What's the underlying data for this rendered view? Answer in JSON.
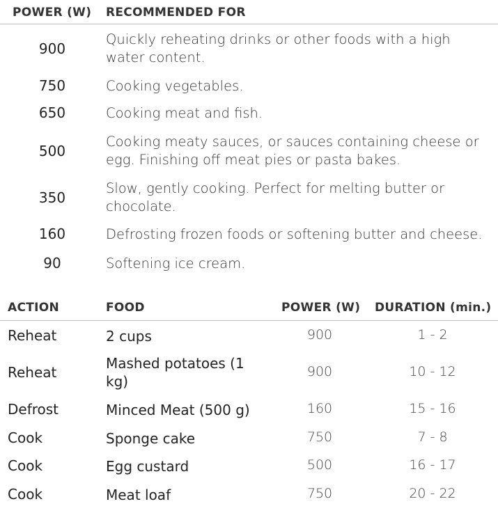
{
  "power_table": {
    "headers": {
      "power": "POWER (W)",
      "recommended": "RECOMMENDED FOR"
    },
    "rows": [
      {
        "power": "900",
        "text": "Quickly reheating drinks or other foods with a high water content."
      },
      {
        "power": "750",
        "text": "Cooking vegetables."
      },
      {
        "power": "650",
        "text": "Cooking meat and fish."
      },
      {
        "power": "500",
        "text": "Cooking meaty sauces, or sauces containing cheese or egg. Finishing off meat pies or pasta bakes."
      },
      {
        "power": "350",
        "text": "Slow, gently cooking. Perfect for melting butter or chocolate."
      },
      {
        "power": "160",
        "text": "Defrosting frozen foods or softening butter and cheese."
      },
      {
        "power": "90",
        "text": "Softening ice cream."
      }
    ]
  },
  "action_table": {
    "headers": {
      "action": "ACTION",
      "food": "FOOD",
      "power": "POWER (W)",
      "duration": "DURATION (min.)"
    },
    "rows": [
      {
        "action": "Reheat",
        "food": "2 cups",
        "power": "900",
        "duration": "1 - 2"
      },
      {
        "action": "Reheat",
        "food": "Mashed potatoes (1 kg)",
        "power": "900",
        "duration": "10 - 12"
      },
      {
        "action": "Defrost",
        "food": "Minced Meat (500 g)",
        "power": "160",
        "duration": "15 - 16"
      },
      {
        "action": "Cook",
        "food": "Sponge cake",
        "power": "750",
        "duration": "7 - 8"
      },
      {
        "action": "Cook",
        "food": "Egg custard",
        "power": "500",
        "duration": "16 - 17"
      },
      {
        "action": "Cook",
        "food": "Meat loaf",
        "power": "750",
        "duration": "20 - 22"
      }
    ]
  }
}
